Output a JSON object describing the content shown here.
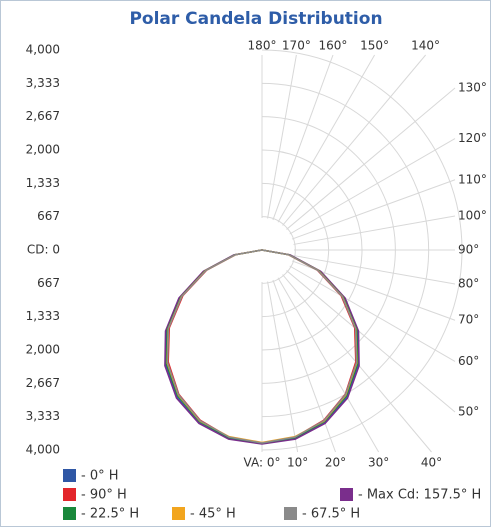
{
  "chart_data": {
    "type": "polar",
    "title": "Polar Candela Distribution",
    "rlim": [
      0,
      4000
    ],
    "rticks": [
      {
        "value": 0,
        "label": "CD: 0"
      },
      667,
      {
        "value": 1333,
        "label": "1,333"
      },
      {
        "value": 2000,
        "label": "2,000"
      },
      {
        "value": 2667,
        "label": "2,667"
      },
      {
        "value": 3333,
        "label": "3,333"
      },
      {
        "value": 4000,
        "label": "4,000"
      }
    ],
    "angle_ticks": [
      {
        "value": 0,
        "label": "VA: 0°"
      },
      {
        "value": 10,
        "label": "10°"
      },
      {
        "value": 20,
        "label": "20°"
      },
      {
        "value": 30,
        "label": "30°"
      },
      {
        "value": 40,
        "label": "40°"
      },
      {
        "value": 50,
        "label": "50°"
      },
      {
        "value": 60,
        "label": "60°"
      },
      {
        "value": 70,
        "label": "70°"
      },
      {
        "value": 80,
        "label": "80°"
      },
      {
        "value": 90,
        "label": "90°"
      },
      {
        "value": 100,
        "label": "100°"
      },
      {
        "value": 110,
        "label": "110°"
      },
      {
        "value": 120,
        "label": "120°"
      },
      {
        "value": 130,
        "label": "130°"
      },
      {
        "value": 140,
        "label": "140°"
      },
      {
        "value": 150,
        "label": "150°"
      },
      {
        "value": 160,
        "label": "160°"
      },
      {
        "value": 170,
        "label": "170°"
      },
      {
        "value": 180,
        "label": "180°"
      }
    ],
    "angles": [
      0,
      10,
      20,
      30,
      40,
      50,
      60,
      70,
      80,
      90
    ],
    "series": [
      {
        "name": "- 0° H",
        "color": "#2f57a5",
        "values": [
          3870,
          3830,
          3680,
          3400,
          3000,
          2500,
          1900,
          1230,
          560,
          0
        ]
      },
      {
        "name": "- 90° H",
        "color": "#e3262b",
        "values": [
          3860,
          3800,
          3620,
          3330,
          2920,
          2420,
          1830,
          1180,
          530,
          0
        ]
      },
      {
        "name": "- Max Cd: 157.5° H",
        "color": "#7a2e8c",
        "values": [
          3880,
          3840,
          3690,
          3420,
          3020,
          2520,
          1920,
          1250,
          570,
          0
        ]
      },
      {
        "name": "- 22.5° H",
        "color": "#19883b",
        "values": [
          3860,
          3810,
          3650,
          3370,
          2970,
          2470,
          1870,
          1210,
          550,
          0
        ]
      },
      {
        "name": "- 45° H",
        "color": "#f2a51e",
        "values": [
          3850,
          3790,
          3640,
          3350,
          2950,
          2450,
          1860,
          1200,
          540,
          0
        ]
      },
      {
        "name": "- 67.5° H",
        "color": "#8a8a8a",
        "values": [
          3860,
          3800,
          3630,
          3340,
          2940,
          2440,
          1850,
          1190,
          540,
          0
        ]
      }
    ]
  }
}
